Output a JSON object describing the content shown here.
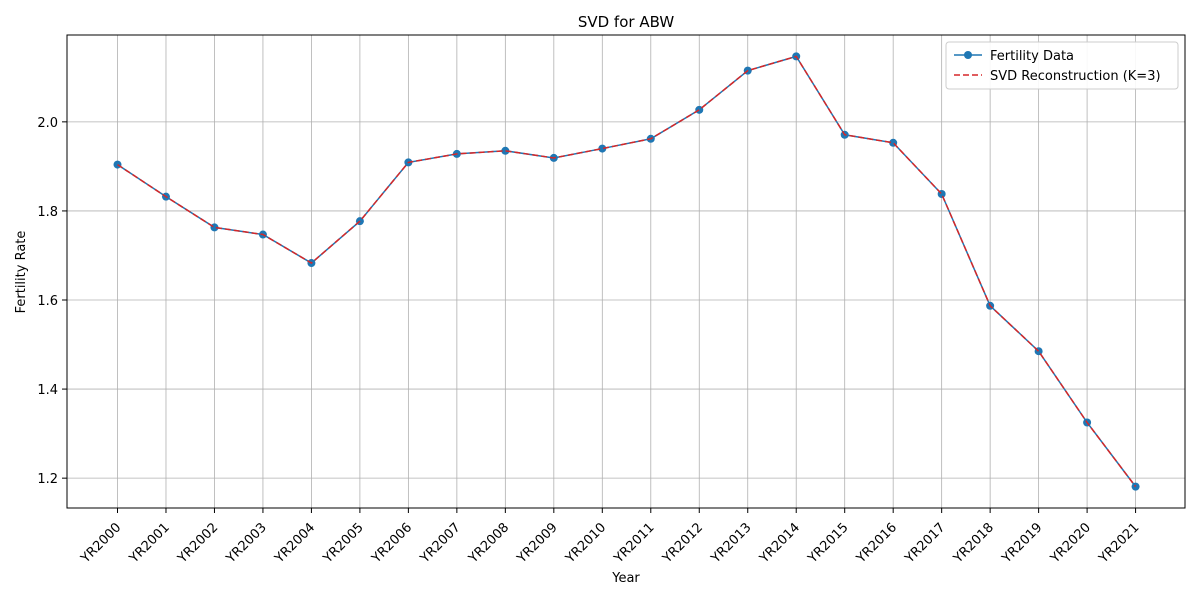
{
  "chart_data": {
    "type": "line",
    "title": "SVD for ABW",
    "xlabel": "Year",
    "ylabel": "Fertility Rate",
    "categories": [
      "YR2000",
      "YR2001",
      "YR2002",
      "YR2003",
      "YR2004",
      "YR2005",
      "YR2006",
      "YR2007",
      "YR2008",
      "YR2009",
      "YR2010",
      "YR2011",
      "YR2012",
      "YR2013",
      "YR2014",
      "YR2015",
      "YR2016",
      "YR2017",
      "YR2018",
      "YR2019",
      "YR2020",
      "YR2021"
    ],
    "series": [
      {
        "name": "Fertility Data",
        "color": "#1f77b4",
        "style": "solid-with-markers",
        "values": [
          1.904,
          1.832,
          1.763,
          1.747,
          1.683,
          1.777,
          1.909,
          1.928,
          1.935,
          1.919,
          1.94,
          1.962,
          2.027,
          2.115,
          2.147,
          1.971,
          1.953,
          1.838,
          1.587,
          1.485,
          1.325,
          1.181
        ]
      },
      {
        "name": "SVD Reconstruction (K=3)",
        "color": "#d62728",
        "style": "dashed",
        "values": [
          1.904,
          1.832,
          1.763,
          1.747,
          1.683,
          1.777,
          1.909,
          1.928,
          1.935,
          1.919,
          1.94,
          1.962,
          2.027,
          2.115,
          2.147,
          1.971,
          1.953,
          1.838,
          1.587,
          1.485,
          1.325,
          1.181
        ]
      }
    ],
    "yticks": [
      "1.2",
      "1.4",
      "1.6",
      "1.8",
      "2.0"
    ],
    "ylim": [
      1.133,
      2.195
    ],
    "grid": true,
    "legend_position": "top-right"
  }
}
